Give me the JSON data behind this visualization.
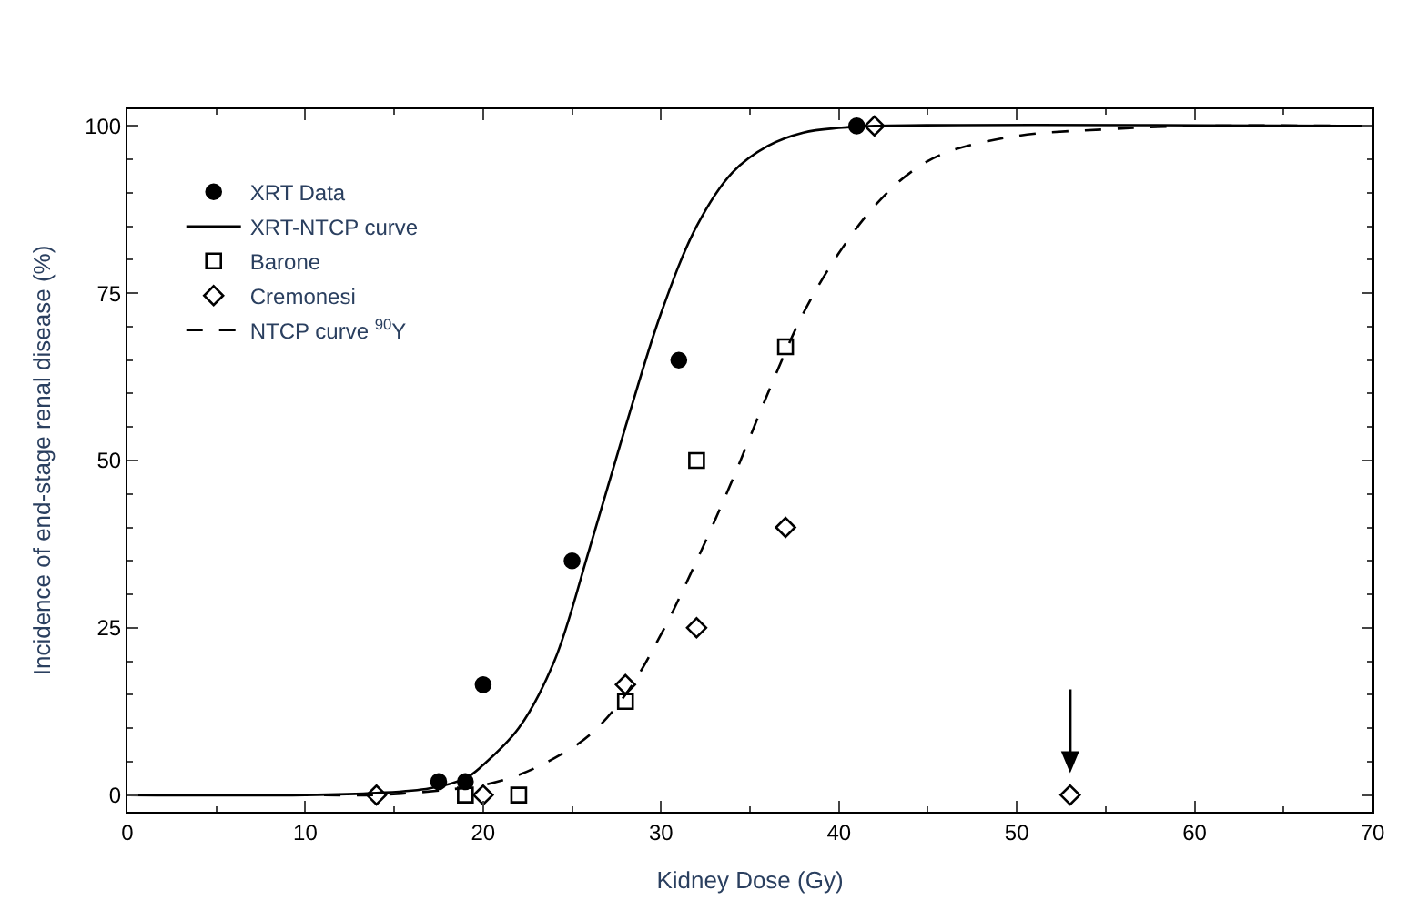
{
  "chart_data": {
    "type": "scatter",
    "xlabel": "Kidney Dose (Gy)",
    "ylabel": "Incidence of end-stage renal disease (%)",
    "xlim": [
      0,
      70
    ],
    "xticks": [
      0,
      10,
      20,
      30,
      40,
      50,
      60,
      70
    ],
    "ylim": [
      -2.5,
      102.5
    ],
    "yticks": [
      0,
      25,
      50,
      75,
      100
    ],
    "legend": "top left",
    "series": [
      {
        "name": "XRT Data",
        "marker": "circle",
        "color": "#000000",
        "x": [
          17.5,
          19,
          20,
          25,
          31,
          41
        ],
        "values": [
          2,
          2,
          16.5,
          35,
          65,
          100
        ]
      },
      {
        "name": "XRT-NTCP curve",
        "type": "line",
        "line_style": "solid",
        "color": "#000000",
        "x": [
          0,
          10,
          14,
          17,
          19,
          20,
          22,
          24,
          26,
          28,
          30,
          32,
          34,
          36,
          38,
          40,
          42,
          70
        ],
        "values": [
          0,
          0,
          0.3,
          1,
          2.5,
          4.5,
          10,
          20,
          37,
          55,
          72,
          85,
          93,
          97,
          99,
          99.7,
          100,
          100
        ]
      },
      {
        "name": "Barone",
        "marker": "square",
        "color": "#000000",
        "x": [
          19,
          22,
          28,
          32,
          37
        ],
        "values": [
          0,
          0,
          14,
          50,
          67
        ]
      },
      {
        "name": "Cremonesi",
        "marker": "diamond",
        "color": "#000000",
        "x": [
          14,
          20,
          28,
          32,
          37,
          42,
          53
        ],
        "values": [
          0,
          0,
          16.5,
          25,
          40,
          100,
          0
        ]
      },
      {
        "name": "NTCP curve $^{90}$Y",
        "type": "line",
        "line_style": "dashed",
        "color": "#000000",
        "x": [
          0,
          10,
          14,
          18,
          20,
          22,
          24,
          26,
          28,
          30,
          32,
          34,
          36,
          38,
          40,
          42,
          44,
          46,
          50,
          55,
          60,
          70
        ],
        "values": [
          0,
          0,
          0,
          0.8,
          1.5,
          3,
          5.5,
          9,
          15,
          24,
          35,
          47,
          60,
          72,
          81,
          88,
          93,
          96,
          98.5,
          99.5,
          100,
          100
        ]
      }
    ]
  }
}
